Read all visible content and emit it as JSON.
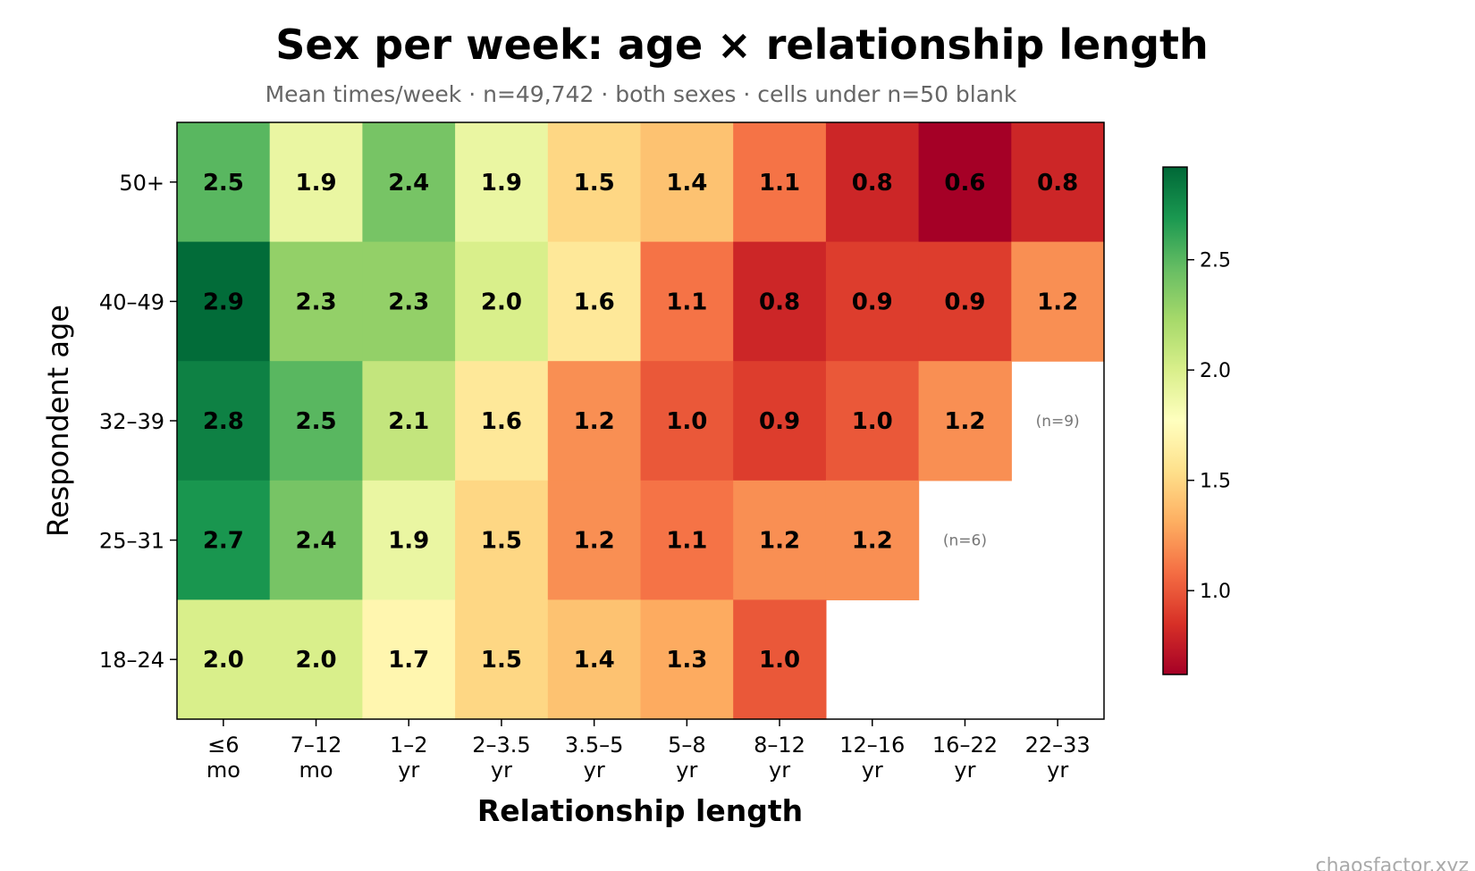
{
  "chart_data": {
    "type": "heatmap",
    "title": "Sex per week: age × relationship length",
    "subtitle": "Mean times/week · n=49,742 · both sexes · cells under n=50 blank",
    "xlabel": "Relationship length",
    "ylabel": "Respondent age",
    "x_categories": [
      [
        "≤6",
        "mo"
      ],
      [
        "7–12",
        "mo"
      ],
      [
        "1–2",
        "yr"
      ],
      [
        "2–3.5",
        "yr"
      ],
      [
        "3.5–5",
        "yr"
      ],
      [
        "5–8",
        "yr"
      ],
      [
        "8–12",
        "yr"
      ],
      [
        "12–16",
        "yr"
      ],
      [
        "16–22",
        "yr"
      ],
      [
        "22–33",
        "yr"
      ]
    ],
    "y_categories": [
      "50+",
      "40–49",
      "32–39",
      "25–31",
      "18–24"
    ],
    "values": [
      [
        2.5,
        1.9,
        2.4,
        1.9,
        1.5,
        1.4,
        1.1,
        0.8,
        0.6,
        0.8
      ],
      [
        2.9,
        2.3,
        2.3,
        2.0,
        1.6,
        1.1,
        0.8,
        0.9,
        0.9,
        1.2
      ],
      [
        2.8,
        2.5,
        2.1,
        1.6,
        1.2,
        1.0,
        0.9,
        1.0,
        1.2,
        null
      ],
      [
        2.7,
        2.4,
        1.9,
        1.5,
        1.2,
        1.1,
        1.2,
        1.2,
        null,
        null
      ],
      [
        2.0,
        2.0,
        1.7,
        1.5,
        1.4,
        1.3,
        1.0,
        null,
        null,
        null
      ]
    ],
    "notes": [
      {
        "row": 2,
        "col": 9,
        "text": "(n=9)"
      },
      {
        "row": 3,
        "col": 8,
        "text": "(n=6)"
      }
    ],
    "colormap": "RdYlGn",
    "color_range": [
      0.62,
      2.92
    ],
    "colorbar_ticks": [
      1.0,
      1.5,
      2.0,
      2.5
    ],
    "colorbar_tick_labels": [
      "1.0",
      "1.5",
      "2.0",
      "2.5"
    ]
  },
  "watermark": "chaosfactor.xyz"
}
